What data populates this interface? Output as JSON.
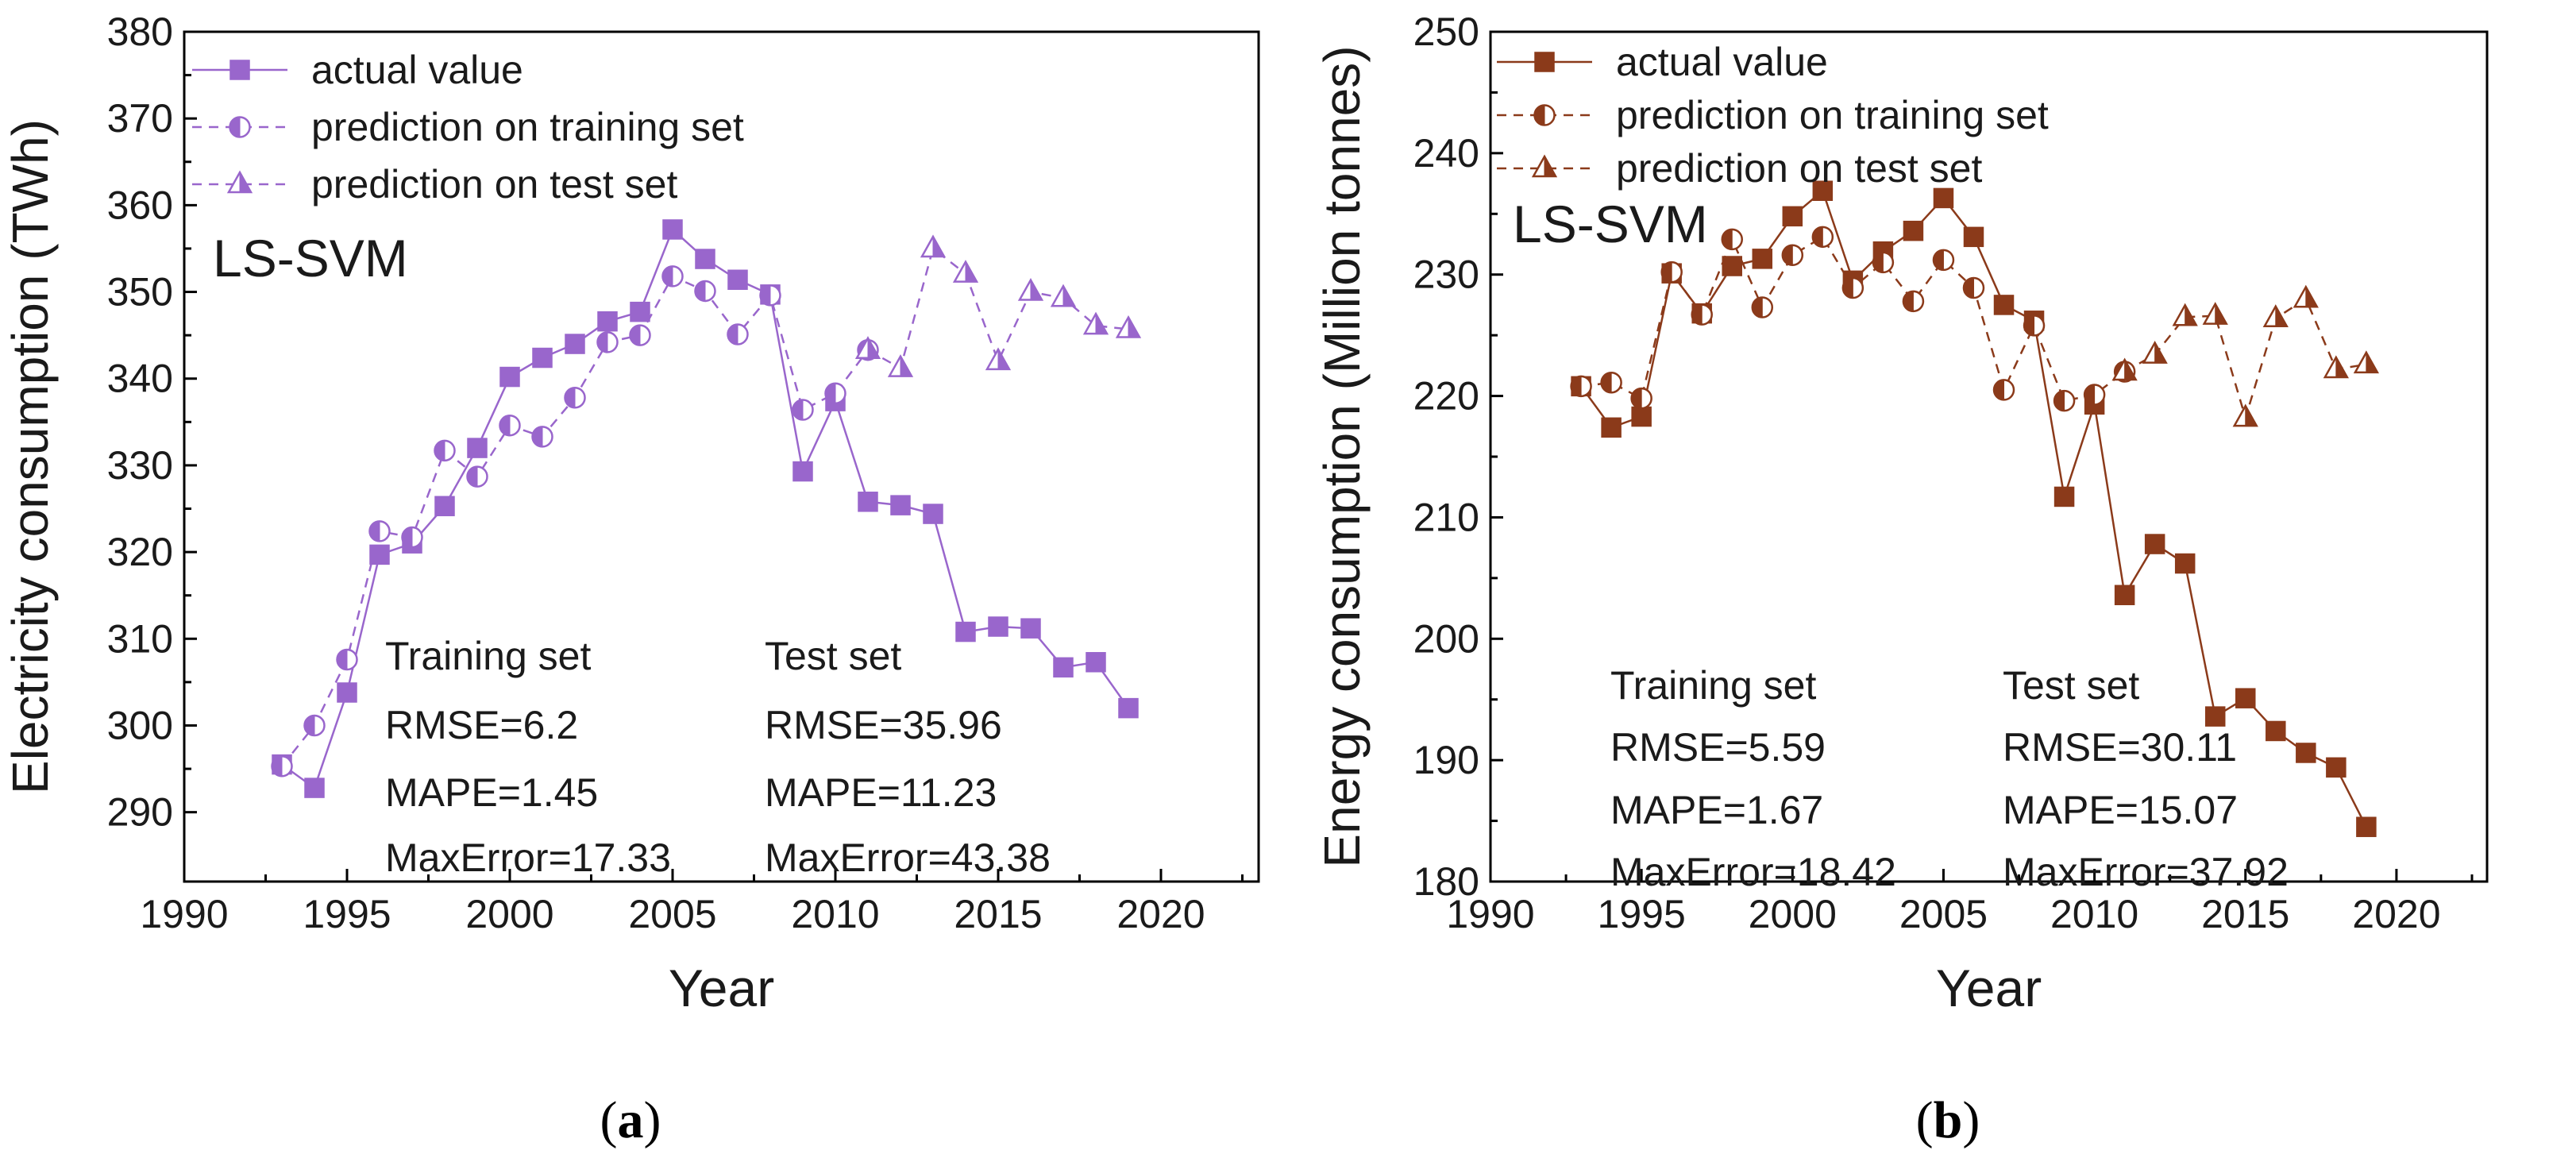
{
  "chart_data": [
    {
      "panel": "a",
      "panel_label": "a",
      "type": "line",
      "title": "",
      "method_label": "LS-SVM",
      "xlabel": "Year",
      "ylabel": "Electricity consumption (TWh)",
      "xlim": [
        1990,
        2023
      ],
      "ylim": [
        282,
        380
      ],
      "xticks": [
        1990,
        1995,
        2000,
        2005,
        2010,
        2015,
        2020
      ],
      "yticks": [
        290,
        300,
        310,
        320,
        330,
        340,
        350,
        360,
        370,
        380
      ],
      "legend_position": "top-left",
      "color": "#9966cc",
      "series": [
        {
          "name": "actual value",
          "marker": "square",
          "style": "solid",
          "x": [
            1993,
            1994,
            1995,
            1996,
            1997,
            1998,
            1999,
            2000,
            2001,
            2002,
            2003,
            2004,
            2005,
            2006,
            2007,
            2008,
            2009,
            2010,
            2011,
            2012,
            2013,
            2014,
            2015,
            2016,
            2017,
            2018,
            2019
          ],
          "values": [
            295.5,
            292.8,
            303.8,
            319.7,
            321.0,
            325.3,
            332.0,
            340.2,
            342.4,
            344.0,
            346.6,
            347.7,
            357.2,
            353.8,
            351.4,
            349.7,
            329.3,
            337.4,
            325.8,
            325.4,
            324.4,
            310.8,
            311.4,
            311.2,
            306.7,
            307.3,
            302.0
          ]
        },
        {
          "name": "prediction on training set",
          "marker": "half-circle",
          "style": "dashed",
          "x": [
            1993,
            1994,
            1995,
            1996,
            1997,
            1998,
            1999,
            2000,
            2001,
            2002,
            2003,
            2004,
            2005,
            2006,
            2007,
            2008,
            2009,
            2010,
            2011
          ],
          "values": [
            295.3,
            300.0,
            307.6,
            322.4,
            321.7,
            331.7,
            328.7,
            334.6,
            333.3,
            337.8,
            344.2,
            345.0,
            351.8,
            350.1,
            345.1,
            349.6,
            336.4,
            338.3,
            343.3
          ]
        },
        {
          "name": "prediction on test set",
          "marker": "half-triangle",
          "style": "dashed",
          "x": [
            2011,
            2012,
            2013,
            2014,
            2015,
            2016,
            2017,
            2018,
            2019
          ],
          "values": [
            343.3,
            341.2,
            355.0,
            352.1,
            342.0,
            350.0,
            349.3,
            346.1,
            345.7
          ]
        }
      ],
      "stats": {
        "training": {
          "title": "Training set",
          "rmse": "RMSE=6.2",
          "mape": "MAPE=1.45",
          "maxerr": "MaxError=17.33"
        },
        "test": {
          "title": "Test set",
          "rmse": "RMSE=35.96",
          "mape": "MAPE=11.23",
          "maxerr": "MaxError=43.38"
        }
      }
    },
    {
      "panel": "b",
      "panel_label": "b",
      "type": "line",
      "title": "",
      "method_label": "LS-SVM",
      "xlabel": "Year",
      "ylabel": "Energy consumption (Million tonnes)",
      "xlim": [
        1990,
        2023
      ],
      "ylim": [
        180,
        250
      ],
      "xticks": [
        1990,
        1995,
        2000,
        2005,
        2010,
        2015,
        2020
      ],
      "yticks": [
        180,
        190,
        200,
        210,
        220,
        230,
        240,
        250
      ],
      "legend_position": "top-left",
      "color": "#8b3a1a",
      "series": [
        {
          "name": "actual value",
          "marker": "square",
          "style": "solid",
          "x": [
            1993,
            1994,
            1995,
            1996,
            1997,
            1998,
            1999,
            2000,
            2001,
            2002,
            2003,
            2004,
            2005,
            2006,
            2007,
            2008,
            2009,
            2010,
            2011,
            2012,
            2013,
            2014,
            2015,
            2016,
            2017,
            2018,
            2019
          ],
          "values": [
            220.8,
            217.4,
            218.3,
            230.1,
            226.8,
            230.7,
            231.3,
            234.8,
            236.9,
            229.5,
            231.9,
            233.6,
            236.3,
            233.1,
            227.5,
            226.2,
            211.7,
            219.3,
            203.6,
            207.8,
            206.2,
            193.6,
            195.1,
            192.4,
            190.6,
            189.4,
            184.5
          ]
        },
        {
          "name": "prediction on training set",
          "marker": "half-circle",
          "style": "dashed",
          "x": [
            1993,
            1994,
            1995,
            1996,
            1997,
            1998,
            1999,
            2000,
            2001,
            2002,
            2003,
            2004,
            2005,
            2006,
            2007,
            2008,
            2009,
            2010,
            2011
          ],
          "values": [
            220.8,
            221.1,
            219.8,
            230.2,
            226.7,
            232.9,
            227.3,
            231.6,
            233.1,
            228.9,
            231.0,
            227.8,
            231.2,
            228.9,
            220.5,
            225.8,
            219.6,
            220.1,
            222.0
          ]
        },
        {
          "name": "prediction on test set",
          "marker": "half-triangle",
          "style": "dashed",
          "x": [
            2011,
            2012,
            2013,
            2014,
            2015,
            2016,
            2017,
            2018,
            2019
          ],
          "values": [
            222.0,
            223.4,
            226.5,
            226.6,
            218.2,
            226.4,
            228.0,
            222.2,
            222.6
          ]
        }
      ],
      "stats": {
        "training": {
          "title": "Training set",
          "rmse": "RMSE=5.59",
          "mape": "MAPE=1.67",
          "maxerr": "MaxError=18.42"
        },
        "test": {
          "title": "Test set",
          "rmse": "RMSE=30.11",
          "mape": "MAPE=15.07",
          "maxerr": "MaxError=37.92"
        }
      }
    }
  ]
}
